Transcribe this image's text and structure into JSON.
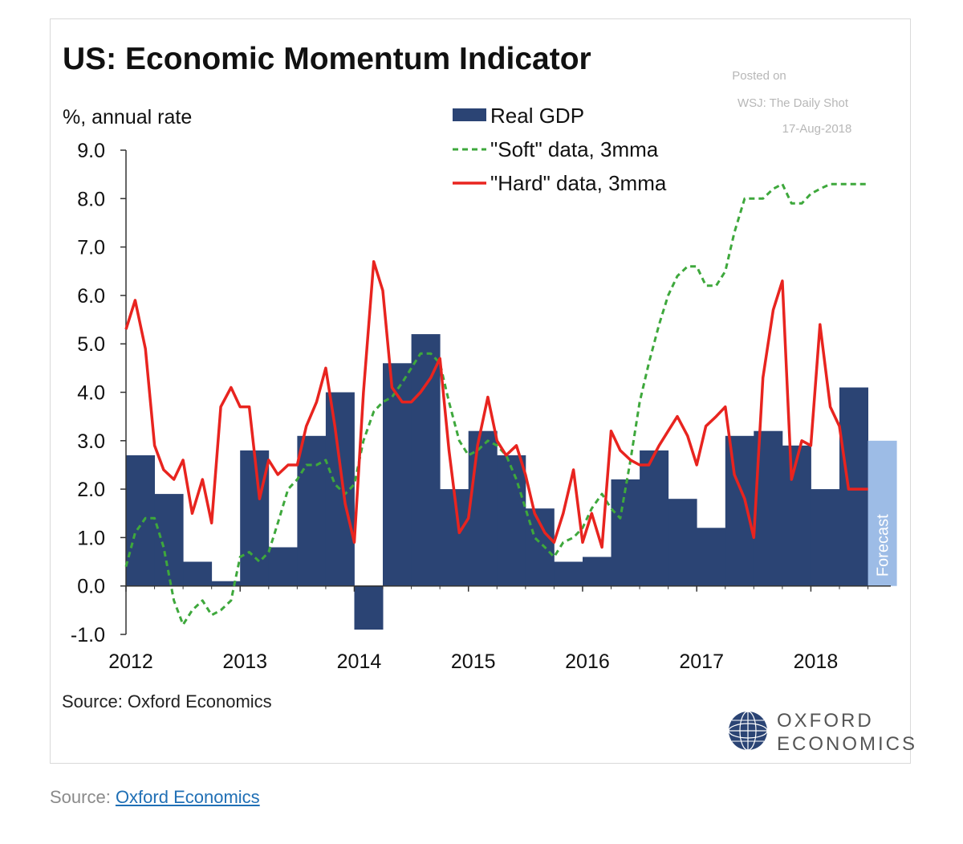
{
  "colors": {
    "gdp": "#2b4474",
    "forecast": "#9dbce6",
    "soft": "#3ea83c",
    "hard": "#e8241f",
    "axis": "#333333",
    "text": "#111111",
    "posted": "#b7b7b7"
  },
  "posted": {
    "line1": "Posted on",
    "line2": "WSJ: The Daily Shot",
    "line3": "17-Aug-2018"
  },
  "chart_data": {
    "type": "bar",
    "title": "US: Economic Momentum Indicator",
    "ylabel": "%, annual rate",
    "ylim": [
      -1.0,
      9.0
    ],
    "xlim": [
      2012.0,
      2018.7
    ],
    "y_ticks": [
      "9.0",
      "8.0",
      "7.0",
      "6.0",
      "5.0",
      "4.0",
      "3.0",
      "2.0",
      "1.0",
      "0.0",
      "-1.0"
    ],
    "x_ticks": [
      "2012",
      "2013",
      "2014",
      "2015",
      "2016",
      "2017",
      "2018"
    ],
    "source": "Source: Oxford Economics",
    "forecast_label": "Forecast",
    "legend": [
      {
        "name": "Real GDP",
        "style": "bar"
      },
      {
        "name": "\"Soft\" data, 3mma",
        "style": "dashed"
      },
      {
        "name": "\"Hard\" data, 3mma",
        "style": "line"
      }
    ],
    "series": [
      {
        "name": "Real GDP",
        "kind": "quarterly_bar",
        "quarters_start": 2012.0,
        "values": [
          2.7,
          1.9,
          0.5,
          0.1,
          2.8,
          0.8,
          3.1,
          4.0,
          -0.9,
          4.6,
          5.2,
          2.0,
          3.2,
          2.7,
          1.6,
          0.5,
          0.6,
          2.2,
          2.8,
          1.8,
          1.2,
          3.1,
          3.2,
          2.9,
          2.0,
          4.1,
          3.0
        ],
        "forecast_from_index": 26
      },
      {
        "name": "\"Soft\" data, 3mma",
        "kind": "monthly_line",
        "x": [
          2012.0,
          2012.08,
          2012.17,
          2012.25,
          2012.33,
          2012.42,
          2012.5,
          2012.58,
          2012.67,
          2012.75,
          2012.83,
          2012.92,
          2013.0,
          2013.08,
          2013.17,
          2013.25,
          2013.33,
          2013.42,
          2013.5,
          2013.58,
          2013.67,
          2013.75,
          2013.83,
          2013.92,
          2014.0,
          2014.08,
          2014.17,
          2014.25,
          2014.33,
          2014.42,
          2014.5,
          2014.58,
          2014.67,
          2014.75,
          2014.83,
          2014.92,
          2015.0,
          2015.08,
          2015.17,
          2015.25,
          2015.33,
          2015.42,
          2015.5,
          2015.58,
          2015.67,
          2015.75,
          2015.83,
          2015.92,
          2016.0,
          2016.08,
          2016.17,
          2016.25,
          2016.33,
          2016.42,
          2016.5,
          2016.58,
          2016.67,
          2016.75,
          2016.83,
          2016.92,
          2017.0,
          2017.08,
          2017.17,
          2017.25,
          2017.33,
          2017.42,
          2017.5,
          2017.58,
          2017.67,
          2017.75,
          2017.83,
          2017.92,
          2018.0,
          2018.08,
          2018.17,
          2018.25,
          2018.33,
          2018.42,
          2018.5
        ],
        "values": [
          0.4,
          1.1,
          1.4,
          1.4,
          0.8,
          -0.3,
          -0.8,
          -0.5,
          -0.3,
          -0.6,
          -0.5,
          -0.3,
          0.6,
          0.7,
          0.5,
          0.7,
          1.3,
          2.0,
          2.2,
          2.5,
          2.5,
          2.6,
          2.1,
          1.9,
          2.1,
          3.0,
          3.6,
          3.8,
          3.9,
          4.2,
          4.5,
          4.8,
          4.8,
          4.6,
          3.8,
          3.0,
          2.7,
          2.8,
          3.0,
          2.9,
          2.7,
          2.2,
          1.6,
          1.0,
          0.8,
          0.6,
          0.9,
          1.0,
          1.2,
          1.6,
          1.9,
          1.6,
          1.4,
          2.6,
          3.8,
          4.6,
          5.4,
          6.0,
          6.4,
          6.6,
          6.6,
          6.2,
          6.2,
          6.5,
          7.3,
          8.0,
          8.0,
          8.0,
          8.2,
          8.3,
          7.9,
          7.9,
          8.1,
          8.2,
          8.3,
          8.3,
          8.3,
          8.3,
          8.3
        ]
      },
      {
        "name": "\"Hard\" data, 3mma",
        "kind": "monthly_line",
        "x": [
          2012.0,
          2012.08,
          2012.17,
          2012.25,
          2012.33,
          2012.42,
          2012.5,
          2012.58,
          2012.67,
          2012.75,
          2012.83,
          2012.92,
          2013.0,
          2013.08,
          2013.17,
          2013.25,
          2013.33,
          2013.42,
          2013.5,
          2013.58,
          2013.67,
          2013.75,
          2013.83,
          2013.92,
          2014.0,
          2014.08,
          2014.17,
          2014.25,
          2014.33,
          2014.42,
          2014.5,
          2014.58,
          2014.67,
          2014.75,
          2014.83,
          2014.92,
          2015.0,
          2015.08,
          2015.17,
          2015.25,
          2015.33,
          2015.42,
          2015.5,
          2015.58,
          2015.67,
          2015.75,
          2015.83,
          2015.92,
          2016.0,
          2016.08,
          2016.17,
          2016.25,
          2016.33,
          2016.42,
          2016.5,
          2016.58,
          2016.67,
          2016.75,
          2016.83,
          2016.92,
          2017.0,
          2017.08,
          2017.17,
          2017.25,
          2017.33,
          2017.42,
          2017.5,
          2017.58,
          2017.67,
          2017.75,
          2017.83,
          2017.92,
          2018.0,
          2018.08,
          2018.17,
          2018.25,
          2018.33,
          2018.42,
          2018.5
        ],
        "values": [
          5.3,
          5.9,
          4.9,
          2.9,
          2.4,
          2.2,
          2.6,
          1.5,
          2.2,
          1.3,
          3.7,
          4.1,
          3.7,
          3.7,
          1.8,
          2.6,
          2.3,
          2.5,
          2.5,
          3.3,
          3.8,
          4.5,
          3.3,
          1.7,
          0.9,
          4.0,
          6.7,
          6.1,
          4.1,
          3.8,
          3.8,
          4.0,
          4.3,
          4.7,
          2.8,
          1.1,
          1.4,
          2.9,
          3.9,
          3.0,
          2.7,
          2.9,
          2.3,
          1.5,
          1.1,
          0.9,
          1.5,
          2.4,
          0.9,
          1.5,
          0.8,
          3.2,
          2.8,
          2.6,
          2.5,
          2.5,
          2.9,
          3.2,
          3.5,
          3.1,
          2.5,
          3.3,
          3.5,
          3.7,
          2.3,
          1.8,
          1.0,
          4.3,
          5.7,
          6.3,
          2.2,
          3.0,
          2.9,
          5.4,
          3.7,
          3.3,
          2.0,
          2.0,
          2.0
        ]
      }
    ]
  },
  "brand": {
    "line1": "OXFORD",
    "line2": "ECONOMICS"
  },
  "page_source": {
    "prefix": "Source: ",
    "link": "Oxford Economics"
  }
}
